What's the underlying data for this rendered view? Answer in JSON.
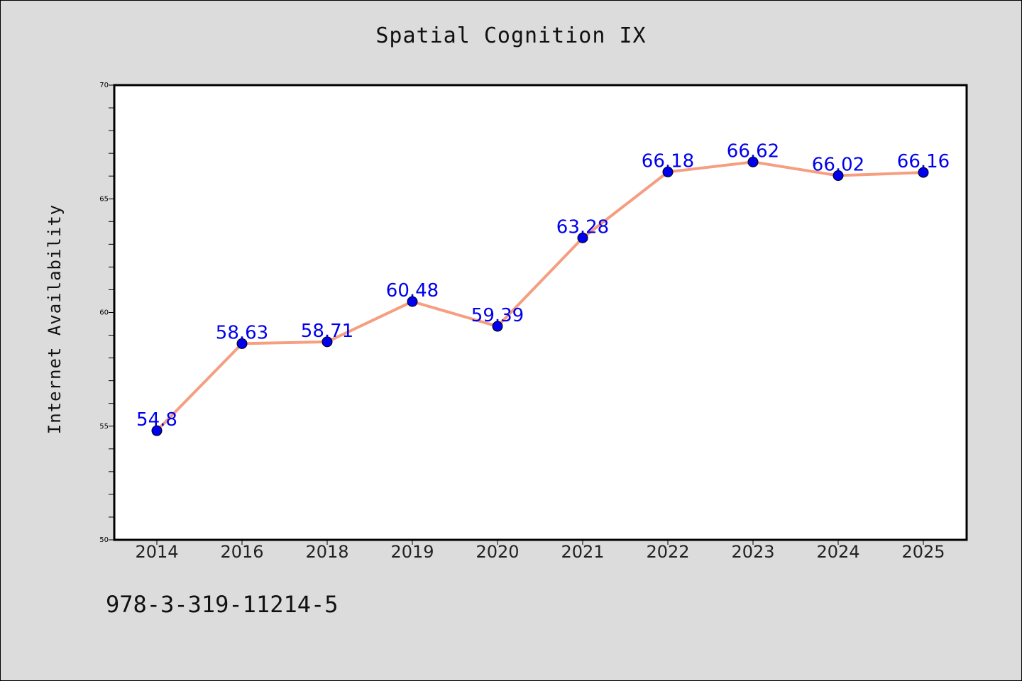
{
  "chart_data": {
    "type": "line",
    "title": "Spatial Cognition IX",
    "ylabel": "Internet Availability",
    "xlabel": "",
    "categories": [
      "2014",
      "2016",
      "2018",
      "2019",
      "2020",
      "2021",
      "2022",
      "2023",
      "2024",
      "2025"
    ],
    "values": [
      54.8,
      58.63,
      58.71,
      60.48,
      59.39,
      63.28,
      66.18,
      66.62,
      66.02,
      66.16
    ],
    "data_labels": [
      "54.8",
      "58.63",
      "58.71",
      "60.48",
      "59.39",
      "63.28",
      "66.18",
      "66.62",
      "66.02",
      "66.16"
    ],
    "ylim": [
      50,
      70
    ],
    "yticks": [
      50,
      55,
      60,
      65,
      70
    ],
    "grid": false,
    "line_color": "#f59e80",
    "marker_color": "#0000ee",
    "label_color": "#0000ee",
    "background_color": "#dcdcdc",
    "plot_background": "#ffffff"
  },
  "footer": {
    "isbn": "978-3-319-11214-5"
  }
}
